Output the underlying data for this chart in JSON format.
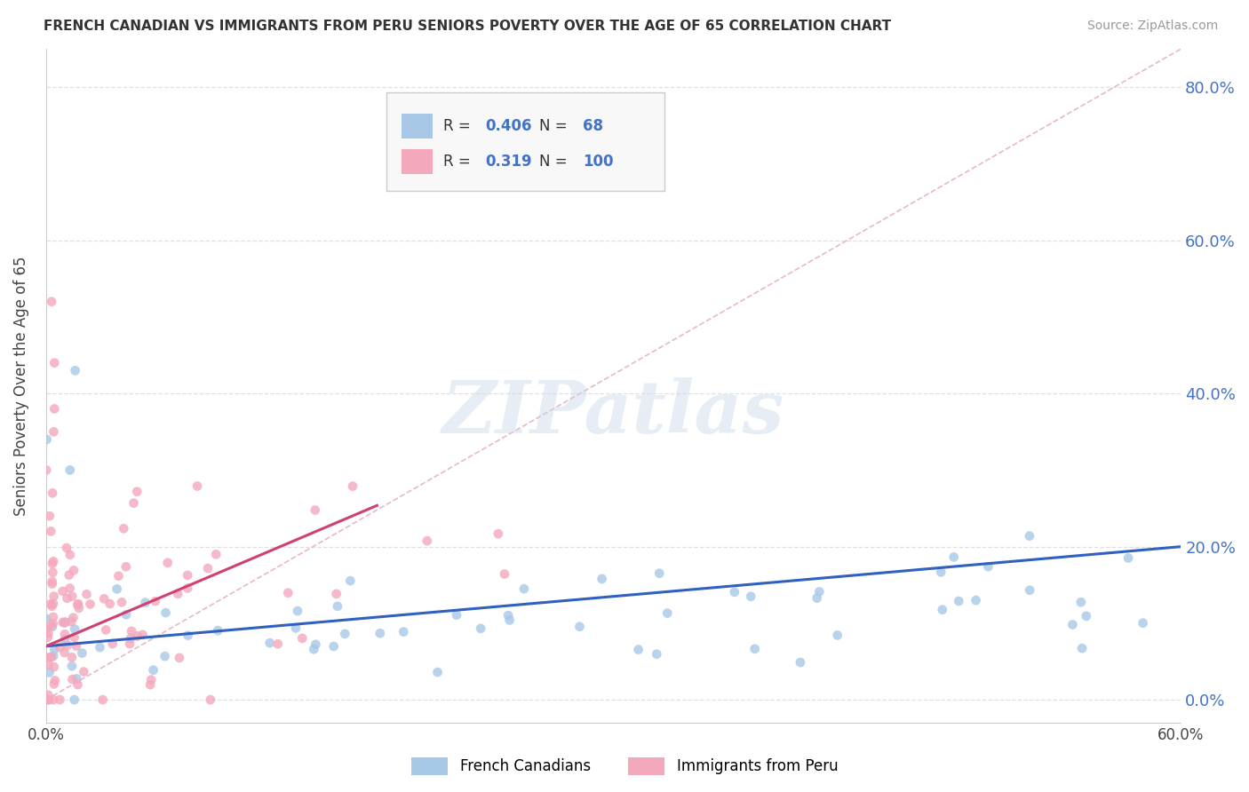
{
  "title": "FRENCH CANADIAN VS IMMIGRANTS FROM PERU SENIORS POVERTY OVER THE AGE OF 65 CORRELATION CHART",
  "source": "Source: ZipAtlas.com",
  "ylabel": "Seniors Poverty Over the Age of 65",
  "yticks": [
    "0.0%",
    "20.0%",
    "40.0%",
    "60.0%",
    "80.0%"
  ],
  "ytick_vals": [
    0.0,
    0.2,
    0.4,
    0.6,
    0.8
  ],
  "xtick_left": "0.0%",
  "xtick_right": "60.0%",
  "xrange": [
    0.0,
    0.6
  ],
  "yrange": [
    -0.03,
    0.85
  ],
  "legend_french_r": "0.406",
  "legend_french_n": "68",
  "legend_peru_r": "0.319",
  "legend_peru_n": "100",
  "french_color": "#a8c8e8",
  "peru_color": "#f4a8bc",
  "french_line_color": "#3060c0",
  "peru_line_color": "#d04070",
  "diagonal_color": "#d0d0d0",
  "background_color": "#ffffff",
  "watermark": "ZIPatlas",
  "french_r": 0.406,
  "french_n": 68,
  "peru_r": 0.319,
  "peru_n": 100,
  "legend_color": "#4472C4",
  "legend_label_color": "#333333"
}
